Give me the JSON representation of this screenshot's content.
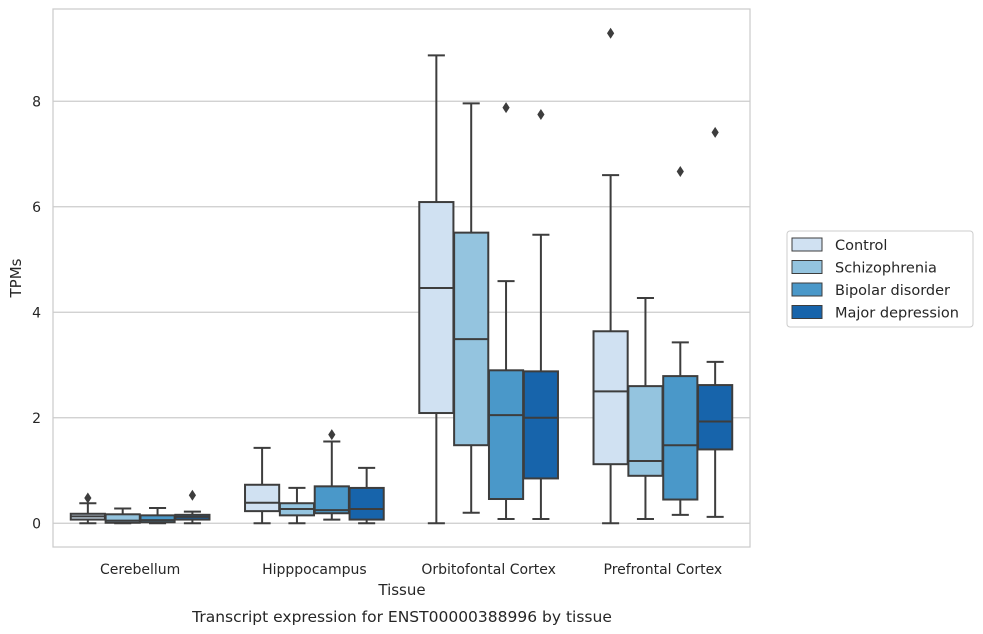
{
  "caption": "Transcript expression for ENST00000388996 by tissue",
  "chart_data": {
    "type": "box",
    "xlabel": "Tissue",
    "ylabel": "TPMs",
    "categories": [
      "Cerebellum",
      "Hipppocampus",
      "Orbitofontal Cortex",
      "Prefrontal Cortex"
    ],
    "ylim": [
      -0.45,
      9.75
    ],
    "yticks": [
      0,
      2,
      4,
      6,
      8
    ],
    "grid": true,
    "legend_position": "right",
    "series": [
      {
        "name": "Control",
        "color": "#d0e1f2",
        "boxes": [
          {
            "whisker_low": 0.0,
            "q1": 0.07,
            "median": 0.13,
            "q3": 0.18,
            "whisker_high": 0.38,
            "outliers": [
              0.48
            ]
          },
          {
            "whisker_low": 0.0,
            "q1": 0.23,
            "median": 0.39,
            "q3": 0.73,
            "whisker_high": 1.43,
            "outliers": []
          },
          {
            "whisker_low": 0.0,
            "q1": 2.09,
            "median": 4.46,
            "q3": 6.09,
            "whisker_high": 8.87,
            "outliers": []
          },
          {
            "whisker_low": 0.0,
            "q1": 1.12,
            "median": 2.5,
            "q3": 3.64,
            "whisker_high": 6.6,
            "outliers": [
              9.29
            ]
          }
        ]
      },
      {
        "name": "Schizophrenia",
        "color": "#94c4df",
        "boxes": [
          {
            "whisker_low": 0.0,
            "q1": 0.01,
            "median": 0.05,
            "q3": 0.17,
            "whisker_high": 0.28,
            "outliers": []
          },
          {
            "whisker_low": 0.0,
            "q1": 0.15,
            "median": 0.27,
            "q3": 0.38,
            "whisker_high": 0.67,
            "outliers": []
          },
          {
            "whisker_low": 0.2,
            "q1": 1.48,
            "median": 3.49,
            "q3": 5.51,
            "whisker_high": 7.96,
            "outliers": []
          },
          {
            "whisker_low": 0.08,
            "q1": 0.9,
            "median": 1.18,
            "q3": 2.6,
            "whisker_high": 4.27,
            "outliers": []
          }
        ]
      },
      {
        "name": "Bipolar disorder",
        "color": "#4a98c9",
        "boxes": [
          {
            "whisker_low": 0.0,
            "q1": 0.02,
            "median": 0.06,
            "q3": 0.15,
            "whisker_high": 0.29,
            "outliers": []
          },
          {
            "whisker_low": 0.07,
            "q1": 0.19,
            "median": 0.25,
            "q3": 0.7,
            "whisker_high": 1.55,
            "outliers": [
              1.68
            ]
          },
          {
            "whisker_low": 0.08,
            "q1": 0.46,
            "median": 2.05,
            "q3": 2.9,
            "whisker_high": 4.59,
            "outliers": [
              7.88
            ]
          },
          {
            "whisker_low": 0.16,
            "q1": 0.45,
            "median": 1.48,
            "q3": 2.79,
            "whisker_high": 3.43,
            "outliers": [
              6.67
            ]
          }
        ]
      },
      {
        "name": "Major depression",
        "color": "#1764ab",
        "boxes": [
          {
            "whisker_low": 0.0,
            "q1": 0.07,
            "median": 0.12,
            "q3": 0.16,
            "whisker_high": 0.22,
            "outliers": [
              0.53
            ]
          },
          {
            "whisker_low": 0.0,
            "q1": 0.07,
            "median": 0.27,
            "q3": 0.67,
            "whisker_high": 1.05,
            "outliers": []
          },
          {
            "whisker_low": 0.08,
            "q1": 0.85,
            "median": 2.0,
            "q3": 2.88,
            "whisker_high": 5.47,
            "outliers": [
              7.75
            ]
          },
          {
            "whisker_low": 0.12,
            "q1": 1.4,
            "median": 1.93,
            "q3": 2.62,
            "whisker_high": 3.06,
            "outliers": [
              7.41
            ]
          }
        ]
      }
    ]
  }
}
